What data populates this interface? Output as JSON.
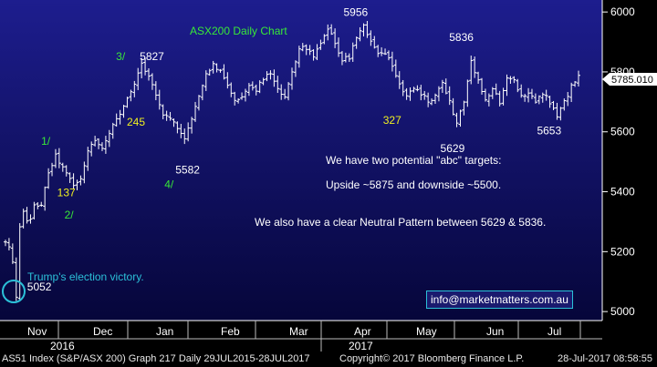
{
  "chart_data": {
    "type": "ohlc",
    "title": "ASX200 Daily Chart",
    "y_axis": {
      "ticks": [
        5000,
        5200,
        5400,
        5600,
        5800,
        6000
      ],
      "ylim": [
        4970,
        6040
      ],
      "position": "right"
    },
    "x_axis": {
      "month_labels": [
        "Nov",
        "Dec",
        "Jan",
        "Feb",
        "Mar",
        "Apr",
        "May",
        "Jun",
        "Jul"
      ],
      "year_labels": [
        "2016",
        "2017"
      ]
    },
    "last_price": "5785.010",
    "path_points": [
      {
        "i": 0,
        "v": 5230
      },
      {
        "i": 1,
        "v": 5215
      },
      {
        "i": 2,
        "v": 5160
      },
      {
        "i": 3,
        "v": 5052
      },
      {
        "i": 4,
        "v": 5280
      },
      {
        "i": 5,
        "v": 5330
      },
      {
        "i": 6,
        "v": 5300
      },
      {
        "i": 7,
        "v": 5310
      },
      {
        "i": 8,
        "v": 5350
      },
      {
        "i": 10,
        "v": 5360
      },
      {
        "i": 12,
        "v": 5460
      },
      {
        "i": 14,
        "v": 5520
      },
      {
        "i": 16,
        "v": 5480
      },
      {
        "i": 18,
        "v": 5440
      },
      {
        "i": 19,
        "v": 5420
      },
      {
        "i": 21,
        "v": 5440
      },
      {
        "i": 23,
        "v": 5540
      },
      {
        "i": 25,
        "v": 5570
      },
      {
        "i": 27,
        "v": 5550
      },
      {
        "i": 30,
        "v": 5620
      },
      {
        "i": 33,
        "v": 5680
      },
      {
        "i": 36,
        "v": 5760
      },
      {
        "i": 38,
        "v": 5827
      },
      {
        "i": 40,
        "v": 5790
      },
      {
        "i": 42,
        "v": 5720
      },
      {
        "i": 44,
        "v": 5660
      },
      {
        "i": 46,
        "v": 5650
      },
      {
        "i": 48,
        "v": 5610
      },
      {
        "i": 50,
        "v": 5582
      },
      {
        "i": 52,
        "v": 5640
      },
      {
        "i": 54,
        "v": 5720
      },
      {
        "i": 56,
        "v": 5790
      },
      {
        "i": 58,
        "v": 5825
      },
      {
        "i": 60,
        "v": 5800
      },
      {
        "i": 62,
        "v": 5760
      },
      {
        "i": 64,
        "v": 5700
      },
      {
        "i": 66,
        "v": 5720
      },
      {
        "i": 68,
        "v": 5760
      },
      {
        "i": 70,
        "v": 5740
      },
      {
        "i": 72,
        "v": 5780
      },
      {
        "i": 74,
        "v": 5790
      },
      {
        "i": 76,
        "v": 5740
      },
      {
        "i": 78,
        "v": 5710
      },
      {
        "i": 80,
        "v": 5800
      },
      {
        "i": 82,
        "v": 5880
      },
      {
        "i": 84,
        "v": 5880
      },
      {
        "i": 86,
        "v": 5850
      },
      {
        "i": 88,
        "v": 5890
      },
      {
        "i": 90,
        "v": 5940
      },
      {
        "i": 92,
        "v": 5900
      },
      {
        "i": 94,
        "v": 5840
      },
      {
        "i": 96,
        "v": 5850
      },
      {
        "i": 98,
        "v": 5920
      },
      {
        "i": 100,
        "v": 5956
      },
      {
        "i": 102,
        "v": 5900
      },
      {
        "i": 104,
        "v": 5860
      },
      {
        "i": 106,
        "v": 5860
      },
      {
        "i": 108,
        "v": 5820
      },
      {
        "i": 110,
        "v": 5760
      },
      {
        "i": 112,
        "v": 5720
      },
      {
        "i": 114,
        "v": 5740
      },
      {
        "i": 116,
        "v": 5730
      },
      {
        "i": 118,
        "v": 5700
      },
      {
        "i": 120,
        "v": 5720
      },
      {
        "i": 122,
        "v": 5760
      },
      {
        "i": 124,
        "v": 5700
      },
      {
        "i": 126,
        "v": 5629
      },
      {
        "i": 128,
        "v": 5700
      },
      {
        "i": 130,
        "v": 5836
      },
      {
        "i": 132,
        "v": 5770
      },
      {
        "i": 134,
        "v": 5700
      },
      {
        "i": 136,
        "v": 5740
      },
      {
        "i": 138,
        "v": 5700
      },
      {
        "i": 140,
        "v": 5780
      },
      {
        "i": 142,
        "v": 5770
      },
      {
        "i": 144,
        "v": 5720
      },
      {
        "i": 146,
        "v": 5730
      },
      {
        "i": 148,
        "v": 5700
      },
      {
        "i": 150,
        "v": 5730
      },
      {
        "i": 152,
        "v": 5700
      },
      {
        "i": 154,
        "v": 5653
      },
      {
        "i": 156,
        "v": 5700
      },
      {
        "i": 158,
        "v": 5750
      },
      {
        "i": 160,
        "v": 5785
      }
    ],
    "annotations": [
      {
        "text": "5052",
        "color": "#ffffff",
        "i": 3,
        "v": 5052,
        "dx": 12,
        "dy": -6
      },
      {
        "text": "1/",
        "color": "#38e838",
        "i": 12,
        "v": 5520,
        "dx": -8,
        "dy": -12
      },
      {
        "text": "137",
        "color": "#f0f020",
        "i": 18,
        "v": 5440,
        "dx": -14,
        "dy": 18
      },
      {
        "text": "2/",
        "color": "#38e838",
        "i": 19,
        "v": 5420,
        "dx": -10,
        "dy": 36
      },
      {
        "text": "3/",
        "color": "#38e838",
        "i": 38,
        "v": 5827,
        "dx": -28,
        "dy": -4
      },
      {
        "text": "5827",
        "color": "#ffffff",
        "i": 38,
        "v": 5827,
        "dx": -2,
        "dy": -4
      },
      {
        "text": "245",
        "color": "#f0f020",
        "i": 40,
        "v": 5790,
        "dx": -24,
        "dy": 56
      },
      {
        "text": "5582",
        "color": "#ffffff",
        "i": 50,
        "v": 5582,
        "dx": -10,
        "dy": 40
      },
      {
        "text": "4/",
        "color": "#38e838",
        "i": 50,
        "v": 5582,
        "dx": -22,
        "dy": 56
      },
      {
        "text": "5956",
        "color": "#ffffff",
        "i": 100,
        "v": 5956,
        "dx": -22,
        "dy": -10
      },
      {
        "text": "327",
        "color": "#f0f020",
        "i": 110,
        "v": 5760,
        "dx": -18,
        "dy": 44
      },
      {
        "text": "5836",
        "color": "#ffffff",
        "i": 130,
        "v": 5836,
        "dx": -24,
        "dy": -22
      },
      {
        "text": "5629",
        "color": "#ffffff",
        "i": 126,
        "v": 5629,
        "dx": -18,
        "dy": 32
      },
      {
        "text": "5653",
        "color": "#ffffff",
        "i": 154,
        "v": 5653,
        "dx": -22,
        "dy": 20
      }
    ],
    "title_color": "#38e838",
    "bar_color": "#ffffff",
    "grid": false
  },
  "notes": [
    "We have two potential \"abc\" targets:",
    "Upside ~5875 and downside ~5500.",
    "We also have a clear Neutral Pattern between 5629 & 5836."
  ],
  "election_label": "Trump's election victory.",
  "email": "info@marketmatters.com.au",
  "footer": {
    "security": "AS51 Index (S&P/ASX 200) Graph 217  Daily 29JUL2015-28JUL2017",
    "copyright": "Copyright© 2017 Bloomberg Finance L.P.",
    "timestamp": "28-Jul-2017 08:58:55"
  }
}
